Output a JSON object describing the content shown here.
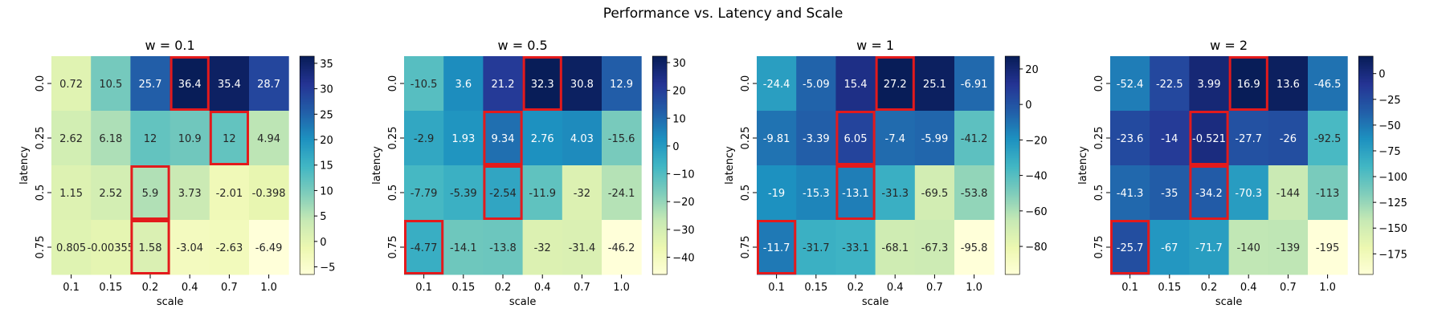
{
  "title": "Performance vs. Latency and Scale",
  "chart_data": [
    {
      "type": "heatmap",
      "title": "w = 0.1",
      "xlabel": "scale",
      "ylabel": "latency",
      "x_categories": [
        "0.1",
        "0.15",
        "0.2",
        "0.4",
        "0.7",
        "1.0"
      ],
      "y_categories": [
        "0.0",
        "0.25",
        "0.5",
        "0.75"
      ],
      "values": [
        [
          0.72,
          10.5,
          25.7,
          36.4,
          35.4,
          28.7
        ],
        [
          2.62,
          6.18,
          12,
          10.9,
          12,
          4.94
        ],
        [
          1.15,
          2.52,
          5.9,
          3.73,
          -2.01,
          -0.398
        ],
        [
          0.805,
          -0.00355,
          1.58,
          -3.04,
          -2.63,
          -6.49
        ]
      ],
      "labels": [
        [
          "0.72",
          "10.5",
          "25.7",
          "36.4",
          "35.4",
          "28.7"
        ],
        [
          "2.62",
          "6.18",
          "12",
          "10.9",
          "12",
          "4.94"
        ],
        [
          "1.15",
          "2.52",
          "5.9",
          "3.73",
          "-2.01",
          "-0.398"
        ],
        [
          "0.805",
          "-0.00355",
          "1.58",
          "-3.04",
          "-2.63",
          "-6.49"
        ]
      ],
      "vmin": -6.49,
      "vmax": 36.4,
      "colorbar_ticks": [
        -5,
        0,
        5,
        10,
        15,
        20,
        25,
        30,
        35
      ],
      "colormap": "YlGnBu",
      "highlighted_cells": [
        [
          0,
          3
        ],
        [
          1,
          4
        ],
        [
          2,
          2
        ],
        [
          3,
          2
        ]
      ],
      "highlight_color": "#e31a1c"
    },
    {
      "type": "heatmap",
      "title": "w = 0.5",
      "xlabel": "scale",
      "ylabel": "latency",
      "x_categories": [
        "0.1",
        "0.15",
        "0.2",
        "0.4",
        "0.7",
        "1.0"
      ],
      "y_categories": [
        "0.0",
        "0.25",
        "0.5",
        "0.75"
      ],
      "values": [
        [
          -10.5,
          3.6,
          21.2,
          32.3,
          30.8,
          12.9
        ],
        [
          -2.9,
          1.93,
          9.34,
          2.76,
          4.03,
          -15.6
        ],
        [
          -7.79,
          -5.39,
          -2.54,
          -11.9,
          -32,
          -24.1
        ],
        [
          -4.77,
          -14.1,
          -13.8,
          -32,
          -31.4,
          -46.2
        ]
      ],
      "labels": [
        [
          "-10.5",
          "3.6",
          "21.2",
          "32.3",
          "30.8",
          "12.9"
        ],
        [
          "-2.9",
          "1.93",
          "9.34",
          "2.76",
          "4.03",
          "-15.6"
        ],
        [
          "-7.79",
          "-5.39",
          "-2.54",
          "-11.9",
          "-32",
          "-24.1"
        ],
        [
          "-4.77",
          "-14.1",
          "-13.8",
          "-32",
          "-31.4",
          "-46.2"
        ]
      ],
      "vmin": -46.2,
      "vmax": 32.3,
      "colorbar_ticks": [
        -40,
        -30,
        -20,
        -10,
        0,
        10,
        20,
        30
      ],
      "colormap": "YlGnBu",
      "highlighted_cells": [
        [
          0,
          3
        ],
        [
          1,
          2
        ],
        [
          2,
          2
        ],
        [
          3,
          0
        ]
      ],
      "highlight_color": "#e31a1c"
    },
    {
      "type": "heatmap",
      "title": "w = 1",
      "xlabel": "scale",
      "ylabel": "latency",
      "x_categories": [
        "0.1",
        "0.15",
        "0.2",
        "0.4",
        "0.7",
        "1.0"
      ],
      "y_categories": [
        "0.0",
        "0.25",
        "0.5",
        "0.75"
      ],
      "values": [
        [
          -24.4,
          -5.09,
          15.4,
          27.2,
          25.1,
          -6.91
        ],
        [
          -9.81,
          -3.39,
          6.05,
          -7.4,
          -5.99,
          -41.2
        ],
        [
          -19,
          -15.3,
          -13.1,
          -31.3,
          -69.5,
          -53.8
        ],
        [
          -11.7,
          -31.7,
          -33.1,
          -68.1,
          -67.3,
          -95.8
        ]
      ],
      "labels": [
        [
          "-24.4",
          "-5.09",
          "15.4",
          "27.2",
          "25.1",
          "-6.91"
        ],
        [
          "-9.81",
          "-3.39",
          "6.05",
          "-7.4",
          "-5.99",
          "-41.2"
        ],
        [
          "-19",
          "-15.3",
          "-13.1",
          "-31.3",
          "-69.5",
          "-53.8"
        ],
        [
          "-11.7",
          "-31.7",
          "-33.1",
          "-68.1",
          "-67.3",
          "-95.8"
        ]
      ],
      "vmin": -95.8,
      "vmax": 27.2,
      "colorbar_ticks": [
        -80,
        -60,
        -40,
        -20,
        0,
        20
      ],
      "colormap": "YlGnBu",
      "highlighted_cells": [
        [
          0,
          3
        ],
        [
          1,
          2
        ],
        [
          2,
          2
        ],
        [
          3,
          0
        ]
      ],
      "highlight_color": "#e31a1c"
    },
    {
      "type": "heatmap",
      "title": "w = 2",
      "xlabel": "scale",
      "ylabel": "latency",
      "x_categories": [
        "0.1",
        "0.15",
        "0.2",
        "0.4",
        "0.7",
        "1.0"
      ],
      "y_categories": [
        "0.0",
        "0.25",
        "0.5",
        "0.75"
      ],
      "values": [
        [
          -52.4,
          -22.5,
          3.99,
          16.9,
          13.6,
          -46.5
        ],
        [
          -23.6,
          -14,
          -0.521,
          -27.7,
          -26,
          -92.5
        ],
        [
          -41.3,
          -35,
          -34.2,
          -70.3,
          -144,
          -113
        ],
        [
          -25.7,
          -67,
          -71.7,
          -140,
          -139,
          -195
        ]
      ],
      "labels": [
        [
          "-52.4",
          "-22.5",
          "3.99",
          "16.9",
          "13.6",
          "-46.5"
        ],
        [
          "-23.6",
          "-14",
          "-0.521",
          "-27.7",
          "-26",
          "-92.5"
        ],
        [
          "-41.3",
          "-35",
          "-34.2",
          "-70.3",
          "-144",
          "-113"
        ],
        [
          "-25.7",
          "-67",
          "-71.7",
          "-140",
          "-139",
          "-195"
        ]
      ],
      "vmin": -195,
      "vmax": 16.9,
      "colorbar_ticks": [
        -175,
        -150,
        -125,
        -100,
        -75,
        -50,
        -25,
        0
      ],
      "colormap": "YlGnBu",
      "highlighted_cells": [
        [
          0,
          3
        ],
        [
          1,
          2
        ],
        [
          2,
          2
        ],
        [
          3,
          0
        ]
      ],
      "highlight_color": "#e31a1c"
    }
  ]
}
